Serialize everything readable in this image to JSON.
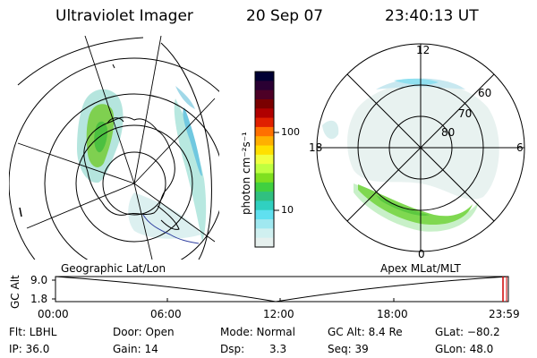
{
  "header": {
    "instrument": "Ultraviolet Imager",
    "date": "20 Sep 07",
    "time": "23:40:13 UT"
  },
  "geographic_panel": {
    "title": "Geographic Lat/Lon"
  },
  "apex_panel": {
    "title": "Apex MLat/MLT",
    "mlt_labels": {
      "top": "12",
      "right": "6",
      "bottom": "0",
      "left": "18"
    },
    "lat_labels": [
      "60",
      "70",
      "80"
    ]
  },
  "colorbar": {
    "unit_label": "photon cm⁻²s⁻¹",
    "ticks": [
      "100",
      "10"
    ],
    "colors": [
      "#000033",
      "#2a0033",
      "#4d0026",
      "#7a0000",
      "#b00000",
      "#e02000",
      "#ff7000",
      "#ffb000",
      "#ffe000",
      "#f0ff40",
      "#c0ff40",
      "#7fe020",
      "#40d040",
      "#30c080",
      "#30d0c0",
      "#60e0f0",
      "#a0e8f0",
      "#d0f0f0",
      "#e6f0ee"
    ]
  },
  "altitude_plot": {
    "ylabel": "GC Alt",
    "y_ticks": [
      "9.0",
      "1.8"
    ],
    "x_ticks": [
      "00:00",
      "06:00",
      "12:00",
      "18:00",
      "23:59"
    ],
    "marker_color": "#d00000"
  },
  "info": {
    "flt": "Flt: LBHL",
    "door": "Door: Open",
    "mode": "Mode: Normal",
    "gc_alt": "GC Alt: 8.4 Re",
    "glat": "GLat: −80.2",
    "ip": "IP: 36.0",
    "gain": "Gain: 14",
    "dsp_label": "Dsp:",
    "dsp_value": "3.3",
    "seq": "Seq: 39",
    "glon": "GLon:  48.0"
  }
}
